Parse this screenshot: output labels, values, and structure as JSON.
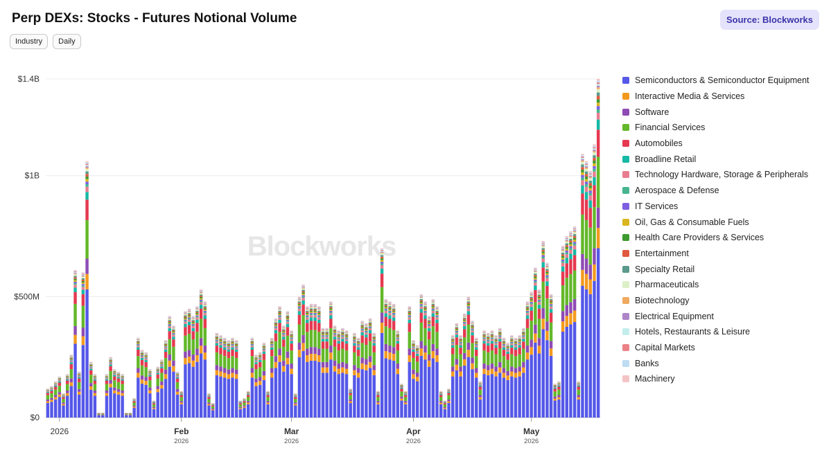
{
  "header": {
    "title": "Perp DEXs: Stocks - Futures Notional Volume",
    "source_label": "Source: Blockworks"
  },
  "filters": [
    "Industry",
    "Daily"
  ],
  "watermark": "Blockworks",
  "colors": {
    "Semiconductors & Semiconductor Equipment": "#5558e8",
    "Interactive Media & Services": "#f39a1e",
    "Software": "#8e4bb4",
    "Financial Services": "#63b82a",
    "Automobiles": "#e53950",
    "Broadline Retail": "#16b8a6",
    "Technology Hardware, Storage & Peripherals": "#e87d8f",
    "Aerospace & Defense": "#46b58f",
    "IT Services": "#7e5fe3",
    "Oil, Gas & Consumable Fuels": "#d9b51e",
    "Health Care Providers & Services": "#3e9a2e",
    "Entertainment": "#e0593e",
    "Specialty Retail": "#5a9a8c",
    "Pharmaceuticals": "#dcf0c8",
    "Biotechnology": "#f0aa60",
    "Electrical Equipment": "#ad86c8",
    "Hotels, Restaurants & Leisure": "#c3eeec",
    "Capital Markets": "#ec8288",
    "Banks": "#bedcf2",
    "Machinery": "#f4c3c6"
  },
  "chart_data": {
    "type": "bar",
    "stacked": true,
    "title": "Perp DEXs: Stocks - Futures Notional Volume",
    "y_ticks": [
      "$0",
      "$500M",
      "$1B",
      "$1.4B"
    ],
    "ylim": [
      0,
      1.4
    ],
    "y_unit": "$B",
    "grid": true,
    "legend_position": "right",
    "x_axis_labels": [
      {
        "label": "2026",
        "sub": "",
        "date": "2026-01-01"
      },
      {
        "label": "Feb",
        "sub": "2026",
        "date": "2026-02-01"
      },
      {
        "label": "Mar",
        "sub": "2026",
        "date": "2026-03-01"
      },
      {
        "label": "Apr",
        "sub": "2026",
        "date": "2026-04-01"
      },
      {
        "label": "May",
        "sub": "2026",
        "date": "2026-05-01"
      }
    ],
    "start_date": "2025-12-29",
    "totals": [
      0.12,
      0.13,
      0.15,
      0.17,
      0.1,
      0.18,
      0.26,
      0.61,
      0.19,
      0.6,
      1.06,
      0.23,
      0.18,
      0.02,
      0.02,
      0.18,
      0.25,
      0.2,
      0.19,
      0.18,
      0.02,
      0.02,
      0.08,
      0.33,
      0.28,
      0.27,
      0.2,
      0.07,
      0.21,
      0.24,
      0.32,
      0.42,
      0.38,
      0.19,
      0.11,
      0.44,
      0.45,
      0.42,
      0.46,
      0.53,
      0.48,
      0.1,
      0.06,
      0.35,
      0.34,
      0.33,
      0.32,
      0.33,
      0.32,
      0.07,
      0.08,
      0.11,
      0.33,
      0.26,
      0.27,
      0.31,
      0.11,
      0.33,
      0.41,
      0.46,
      0.38,
      0.44,
      0.36,
      0.1,
      0.5,
      0.55,
      0.46,
      0.47,
      0.47,
      0.46,
      0.37,
      0.37,
      0.48,
      0.38,
      0.36,
      0.37,
      0.36,
      0.12,
      0.35,
      0.33,
      0.4,
      0.39,
      0.41,
      0.35,
      0.11,
      0.7,
      0.49,
      0.48,
      0.47,
      0.36,
      0.14,
      0.11,
      0.46,
      0.32,
      0.3,
      0.51,
      0.48,
      0.42,
      0.49,
      0.46,
      0.11,
      0.07,
      0.12,
      0.34,
      0.39,
      0.34,
      0.43,
      0.5,
      0.4,
      0.33,
      0.15,
      0.36,
      0.35,
      0.36,
      0.34,
      0.37,
      0.33,
      0.31,
      0.34,
      0.33,
      0.34,
      0.37,
      0.48,
      0.52,
      0.62,
      0.53,
      0.73,
      0.64,
      0.51,
      0.14,
      0.15,
      0.71,
      0.75,
      0.77,
      0.79,
      0.15,
      1.09,
      1.06,
      1.02,
      1.13,
      1.4
    ],
    "series": [
      {
        "name": "Semiconductors & Semiconductor Equipment",
        "share": 0.5
      },
      {
        "name": "Interactive Media & Services",
        "share": 0.06
      },
      {
        "name": "Software",
        "share": 0.06
      },
      {
        "name": "Financial Services",
        "share": 0.15
      },
      {
        "name": "Automobiles",
        "share": 0.08
      },
      {
        "name": "Broadline Retail",
        "share": 0.03
      },
      {
        "name": "Technology Hardware, Storage & Peripherals",
        "share": 0.02
      },
      {
        "name": "Aerospace & Defense",
        "share": 0.01
      },
      {
        "name": "IT Services",
        "share": 0.01
      },
      {
        "name": "Oil, Gas & Consumable Fuels",
        "share": 0.01
      },
      {
        "name": "Health Care Providers & Services",
        "share": 0.01
      },
      {
        "name": "Entertainment",
        "share": 0.01
      },
      {
        "name": "Specialty Retail",
        "share": 0.01
      },
      {
        "name": "Pharmaceuticals",
        "share": 0.01
      },
      {
        "name": "Biotechnology",
        "share": 0.005
      },
      {
        "name": "Electrical Equipment",
        "share": 0.005
      },
      {
        "name": "Hotels, Restaurants & Leisure",
        "share": 0.005
      },
      {
        "name": "Capital Markets",
        "share": 0.005
      },
      {
        "name": "Banks",
        "share": 0.005
      },
      {
        "name": "Machinery",
        "share": 0.005
      }
    ]
  }
}
